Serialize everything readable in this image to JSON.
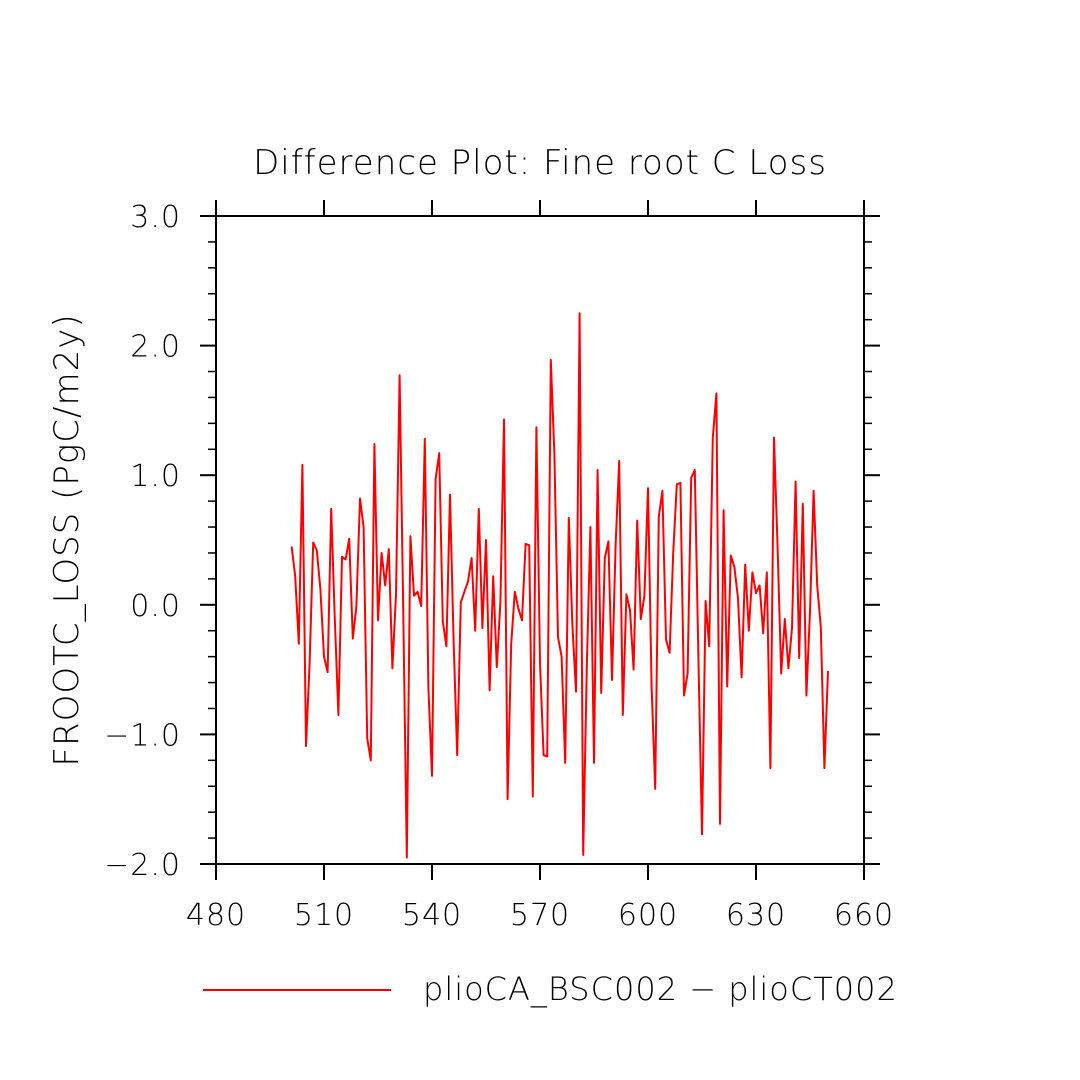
{
  "chart_data": {
    "type": "line",
    "title": "Difference Plot: Fine root C Loss",
    "xlabel": "",
    "ylabel": "FROOTC_LOSS  (PgC/m2y)",
    "xlim": [
      480,
      660
    ],
    "ylim": [
      -2.0,
      3.0
    ],
    "x_ticks": [
      "480",
      "510",
      "540",
      "570",
      "600",
      "630",
      "660"
    ],
    "y_ticks": [
      "−2.0",
      "−1.0",
      "0.0",
      "1.0",
      "2.0",
      "3.0"
    ],
    "grid": false,
    "legend_position": "bottom",
    "colors": {
      "series_1": "#ff0000"
    },
    "series": [
      {
        "name": "plioCA_BSC002 − plioCT002",
        "x": [
          501,
          502,
          503,
          504,
          505,
          506,
          507,
          508,
          509,
          510,
          511,
          512,
          513,
          514,
          515,
          516,
          517,
          518,
          519,
          520,
          521,
          522,
          523,
          524,
          525,
          526,
          527,
          528,
          529,
          530,
          531,
          532,
          533,
          534,
          535,
          536,
          537,
          538,
          539,
          540,
          541,
          542,
          543,
          544,
          545,
          546,
          547,
          548,
          549,
          550,
          551,
          552,
          553,
          554,
          555,
          556,
          557,
          558,
          559,
          560,
          561,
          562,
          563,
          564,
          565,
          566,
          567,
          568,
          569,
          570,
          571,
          572,
          573,
          574,
          575,
          576,
          577,
          578,
          579,
          580,
          581,
          582,
          583,
          584,
          585,
          586,
          587,
          588,
          589,
          590,
          591,
          592,
          593,
          594,
          595,
          596,
          597,
          598,
          599,
          600,
          601,
          602,
          603,
          604,
          605,
          606,
          607,
          608,
          609,
          610,
          611,
          612,
          613,
          614,
          615,
          616,
          617,
          618,
          619,
          620,
          621,
          622,
          623,
          624,
          625,
          626,
          627,
          628,
          629,
          630,
          631,
          632,
          633,
          634,
          635,
          636,
          637,
          638,
          639,
          640,
          641,
          642,
          643,
          644,
          645,
          646,
          647,
          648,
          649,
          650
        ],
        "values": [
          0.45,
          0.22,
          -0.3,
          1.08,
          -1.09,
          -0.45,
          0.48,
          0.42,
          0.12,
          -0.4,
          -0.52,
          0.74,
          -0.11,
          -0.85,
          0.37,
          0.35,
          0.51,
          -0.26,
          -0.01,
          0.82,
          0.6,
          -1.03,
          -1.2,
          1.24,
          -0.12,
          0.4,
          0.15,
          0.43,
          -0.49,
          0.08,
          1.77,
          -0.02,
          -1.95,
          0.53,
          0.07,
          0.1,
          -0.01,
          1.28,
          -0.64,
          -1.32,
          0.97,
          1.17,
          -0.13,
          -0.32,
          0.85,
          -0.28,
          -1.16,
          0.02,
          0.1,
          0.18,
          0.36,
          -0.2,
          0.74,
          -0.18,
          0.5,
          -0.66,
          0.22,
          -0.48,
          0.02,
          1.43,
          -1.5,
          -0.3,
          0.1,
          -0.03,
          -0.12,
          0.47,
          0.46,
          -1.48,
          1.37,
          -0.45,
          -1.16,
          -1.17,
          1.89,
          1.16,
          -0.25,
          -0.4,
          -1.22,
          0.67,
          -0.16,
          -0.67,
          2.25,
          -1.93,
          -0.48,
          0.6,
          -1.22,
          1.04,
          -0.68,
          0.36,
          0.49,
          -0.58,
          0.46,
          1.11,
          -0.85,
          0.08,
          -0.04,
          -0.5,
          0.65,
          -0.11,
          0.07,
          0.9,
          -0.63,
          -1.42,
          0.68,
          0.88,
          -0.27,
          -0.37,
          0.4,
          0.93,
          0.94,
          -0.7,
          -0.53,
          0.98,
          1.04,
          -0.4,
          -1.77,
          0.03,
          -0.32,
          1.29,
          1.63,
          -1.69,
          0.73,
          -0.63,
          0.38,
          0.29,
          0.05,
          -0.56,
          0.31,
          -0.2,
          0.25,
          0.09,
          0.15,
          -0.22,
          0.25,
          -1.26,
          1.29,
          0.44,
          -0.53,
          -0.11,
          -0.49,
          -0.18,
          0.95,
          -0.41,
          0.78,
          -0.7,
          -0.05,
          0.88,
          0.15,
          -0.17,
          -1.26,
          -0.51
        ]
      }
    ]
  }
}
